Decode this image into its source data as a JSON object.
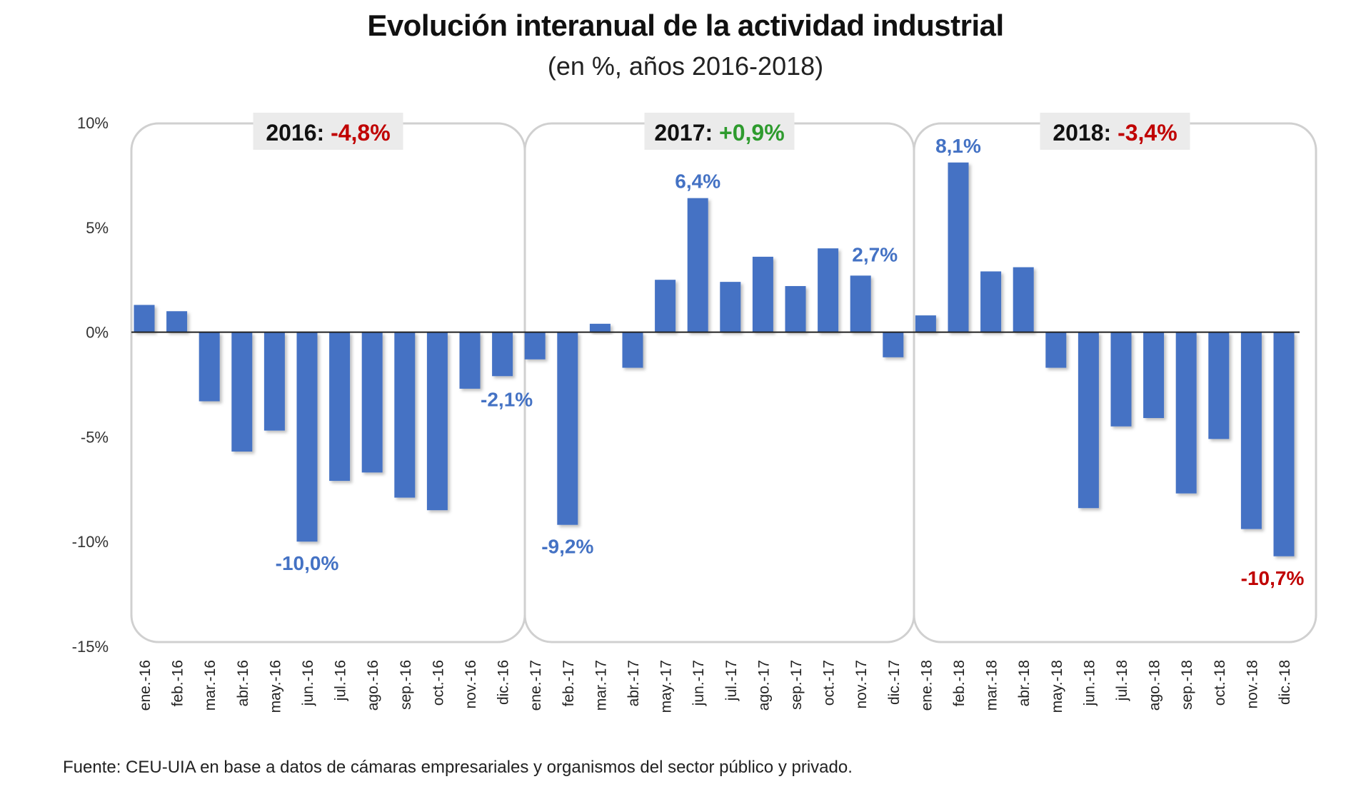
{
  "chart_data": {
    "type": "bar",
    "title": "Evolución interanual de la actividad industrial",
    "subtitle": "(en %, años 2016-2018)",
    "xlabel": "",
    "ylabel": "",
    "ylim": [
      -15,
      10
    ],
    "yticks": [
      10,
      5,
      0,
      -5,
      -10,
      -15
    ],
    "ytick_labels": [
      "10%",
      "5%",
      "0%",
      "-5%",
      "-10%",
      "-15%"
    ],
    "grid": false,
    "bar_color": "#4472C4",
    "categories": [
      "ene.-16",
      "feb.-16",
      "mar.-16",
      "abr.-16",
      "may.-16",
      "jun.-16",
      "jul.-16",
      "ago.-16",
      "sep.-16",
      "oct.-16",
      "nov.-16",
      "dic.-16",
      "ene.-17",
      "feb.-17",
      "mar.-17",
      "abr.-17",
      "may.-17",
      "jun.-17",
      "jul.-17",
      "ago.-17",
      "sep.-17",
      "oct.-17",
      "nov.-17",
      "dic.-17",
      "ene.-18",
      "feb.-18",
      "mar.-18",
      "abr.-18",
      "may.-18",
      "jun.-18",
      "jul.-18",
      "ago.-18",
      "sep.-18",
      "oct.-18",
      "nov.-18",
      "dic.-18"
    ],
    "values": [
      1.3,
      1.0,
      -3.3,
      -5.7,
      -4.7,
      -10.0,
      -7.1,
      -6.7,
      -7.9,
      -8.5,
      -2.7,
      -2.1,
      -1.3,
      -9.2,
      0.4,
      -1.7,
      2.5,
      6.4,
      2.4,
      3.6,
      2.2,
      4.0,
      2.7,
      -1.2,
      0.8,
      8.1,
      2.9,
      3.1,
      -1.7,
      -8.4,
      -4.5,
      -4.1,
      -7.7,
      -5.1,
      -9.4,
      -10.7
    ],
    "data_labels": [
      {
        "index": 5,
        "text": "-10,0%",
        "color": "#4472C4"
      },
      {
        "index": 11,
        "text": "-2,1%",
        "color": "#4472C4"
      },
      {
        "index": 13,
        "text": "-9,2%",
        "color": "#4472C4"
      },
      {
        "index": 17,
        "text": "6,4%",
        "color": "#4472C4"
      },
      {
        "index": 22,
        "text": "2,7%",
        "color": "#4472C4"
      },
      {
        "index": 25,
        "text": "8,1%",
        "color": "#4472C4"
      },
      {
        "index": 35,
        "text": "-10,7%",
        "color": "#C00000"
      }
    ],
    "panels": [
      {
        "year": "2016:",
        "value": "-4,8%",
        "value_color": "#C00000",
        "start": 0,
        "end": 11
      },
      {
        "year": "2017:",
        "value": "+0,9%",
        "value_color": "#2E9B2E",
        "start": 12,
        "end": 23
      },
      {
        "year": "2018:",
        "value": "-3,4%",
        "value_color": "#C00000",
        "start": 24,
        "end": 35
      }
    ]
  },
  "footer": "Fuente: CEU-UIA en base a datos de cámaras empresariales y organismos del sector público y privado."
}
